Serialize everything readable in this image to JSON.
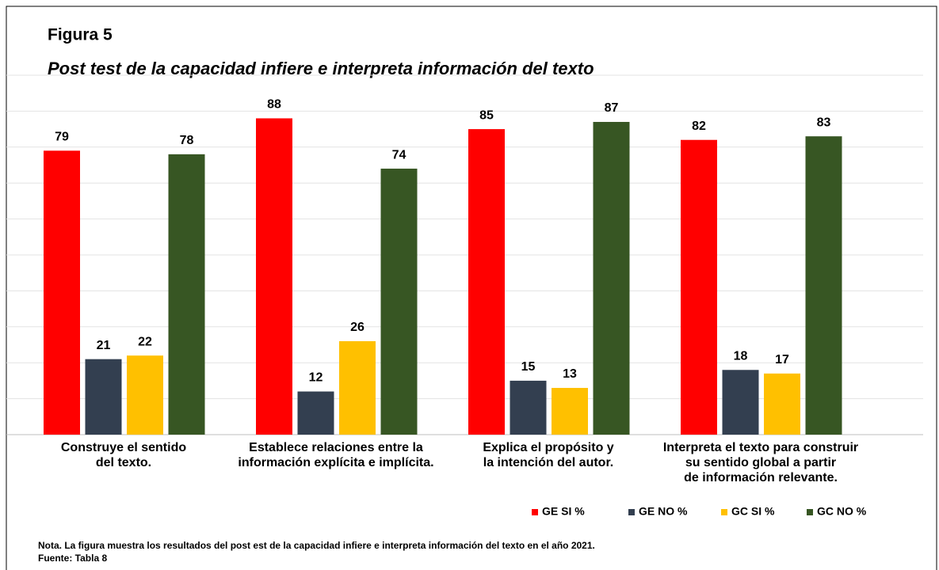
{
  "chart_data": {
    "type": "bar",
    "title": "Figura 5",
    "subtitle": "Post test de la capacidad infiere e interpreta información del texto",
    "categories": [
      "Construye el sentido\ndel texto.",
      "Establece relaciones entre la\ninformación explícita e implícita.",
      "Explica el propósito y\nla intención del autor.",
      "Interpreta el texto para construir\nsu sentido global a partir\nde información relevante."
    ],
    "series": [
      {
        "name": "GE SI %",
        "color": "#ff0000",
        "values": [
          79,
          88,
          85,
          82
        ]
      },
      {
        "name": "GE NO %",
        "color": "#333f50",
        "values": [
          21,
          12,
          15,
          18
        ]
      },
      {
        "name": "GC SI %",
        "color": "#ffc000",
        "values": [
          22,
          26,
          13,
          17
        ]
      },
      {
        "name": "GC NO %",
        "color": "#375623",
        "values": [
          78,
          74,
          87,
          83
        ]
      }
    ],
    "ylim": [
      0,
      100
    ],
    "yticks": [
      0,
      10,
      20,
      30,
      40,
      50,
      60,
      70,
      80,
      90,
      100
    ],
    "grid": true,
    "legend": "bottom-right",
    "note": "Nota. La figura muestra los resultados del post est de la capacidad infiere e interpreta información del texto  en el año 2021.",
    "source": "Fuente: Tabla 8"
  }
}
